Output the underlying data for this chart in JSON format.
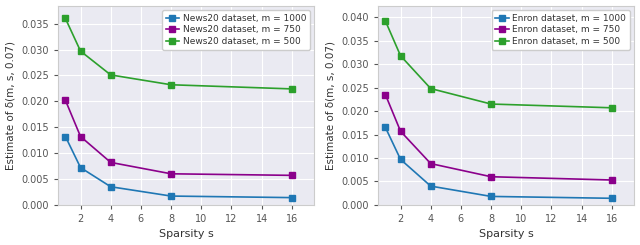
{
  "x_values": [
    1,
    2,
    4,
    8,
    16
  ],
  "left_plot": {
    "xlabel": "Sparsity s",
    "ylabel": "Estimate of δ(m, s, 0.07)",
    "ylim": [
      0,
      0.0385
    ],
    "yticks": [
      0.0,
      0.005,
      0.01,
      0.015,
      0.02,
      0.025,
      0.03,
      0.035
    ],
    "xticks": [
      2,
      4,
      6,
      8,
      10,
      12,
      14,
      16
    ],
    "xlim": [
      0.5,
      17.5
    ],
    "series": [
      {
        "label": "News20 dataset, m = 1000",
        "color": "#1f77b4",
        "values": [
          0.0132,
          0.0072,
          0.0035,
          0.0017,
          0.0014
        ]
      },
      {
        "label": "News20 dataset, m = 750",
        "color": "#8B008B",
        "values": [
          0.0202,
          0.0132,
          0.0082,
          0.006,
          0.0057
        ]
      },
      {
        "label": "News20 dataset, m = 500",
        "color": "#2ca02c",
        "values": [
          0.036,
          0.0297,
          0.0251,
          0.0232,
          0.0224
        ]
      }
    ]
  },
  "right_plot": {
    "xlabel": "Sparsity s",
    "ylabel": "Estimate of δ(m, s, 0.07)",
    "ylim": [
      0,
      0.0425
    ],
    "yticks": [
      0.0,
      0.005,
      0.01,
      0.015,
      0.02,
      0.025,
      0.03,
      0.035,
      0.04
    ],
    "xticks": [
      2,
      4,
      6,
      8,
      10,
      12,
      14,
      16
    ],
    "xlim": [
      0.5,
      17.5
    ],
    "series": [
      {
        "label": "Enron dataset, m = 1000",
        "color": "#1f77b4",
        "values": [
          0.0165,
          0.0097,
          0.004,
          0.0018,
          0.0014
        ]
      },
      {
        "label": "Enron dataset, m = 750",
        "color": "#8B008B",
        "values": [
          0.0235,
          0.0157,
          0.0088,
          0.006,
          0.0053
        ]
      },
      {
        "label": "Enron dataset, m = 500",
        "color": "#2ca02c",
        "values": [
          0.0392,
          0.0318,
          0.0248,
          0.0215,
          0.0207
        ]
      }
    ]
  },
  "marker": "s",
  "markersize": 4,
  "linewidth": 1.2,
  "axes_facecolor": "#eaeaf2",
  "grid_color": "#ffffff",
  "figure_facecolor": "#ffffff",
  "tick_fontsize": 7,
  "label_fontsize": 8,
  "legend_fontsize": 6.5
}
